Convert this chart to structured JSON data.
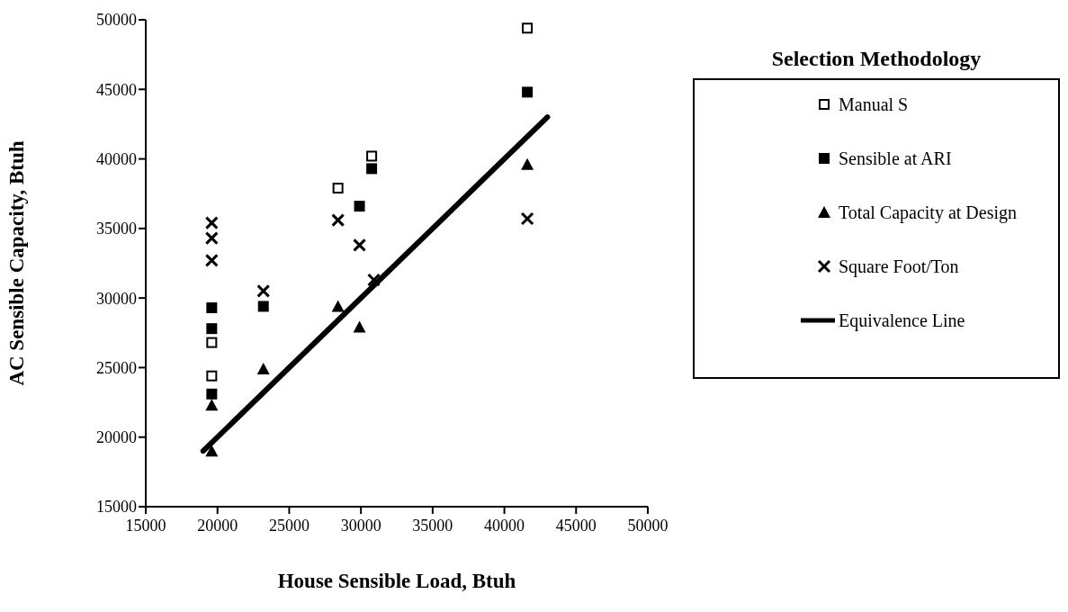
{
  "chart_data": {
    "type": "scatter",
    "xlabel": "House Sensible Load, Btuh",
    "ylabel": "AC Sensible Capacity, Btuh",
    "legend_title": "Selection Methodology",
    "xlim": [
      15000,
      50000
    ],
    "xticks": [
      15000,
      20000,
      25000,
      30000,
      35000,
      40000,
      45000,
      50000
    ],
    "ylim": [
      15000,
      50000
    ],
    "yticks": [
      15000,
      20000,
      25000,
      30000,
      35000,
      40000,
      45000,
      50000
    ],
    "grid": false,
    "legend": "right",
    "series": [
      {
        "name": "Manual S",
        "type": "scatter",
        "marker": "square",
        "color": "#ffffff",
        "x": [
          19600,
          19600,
          28400,
          30750,
          41600
        ],
        "values": [
          26800,
          24400,
          37900,
          40200,
          49400
        ]
      },
      {
        "name": "Sensible at ARI",
        "type": "scatter",
        "marker": "square",
        "color": "#000000",
        "x": [
          19600,
          19600,
          19600,
          23200,
          29900,
          30750,
          41600
        ],
        "values": [
          29300,
          27800,
          23100,
          29400,
          36600,
          39300,
          44800
        ]
      },
      {
        "name": "Total Capacity at Design",
        "type": "scatter",
        "marker": "triangle",
        "color": "#000000",
        "x": [
          19600,
          19600,
          23200,
          28400,
          29900,
          41600
        ],
        "values": [
          22300,
          19000,
          24900,
          29400,
          27900,
          39600
        ]
      },
      {
        "name": "Square Foot/Ton",
        "type": "scatter",
        "marker": "cross",
        "color": "#000000",
        "x": [
          19600,
          19600,
          19600,
          23200,
          28400,
          29900,
          30900,
          41600
        ],
        "values": [
          35400,
          34300,
          32700,
          30500,
          35600,
          33800,
          31300,
          35700
        ]
      },
      {
        "name": "Equivalence Line",
        "type": "line",
        "marker": "none",
        "line_style": "solid",
        "color": "#000000",
        "x": [
          19000,
          43000
        ],
        "values": [
          19000,
          43000
        ]
      }
    ]
  }
}
